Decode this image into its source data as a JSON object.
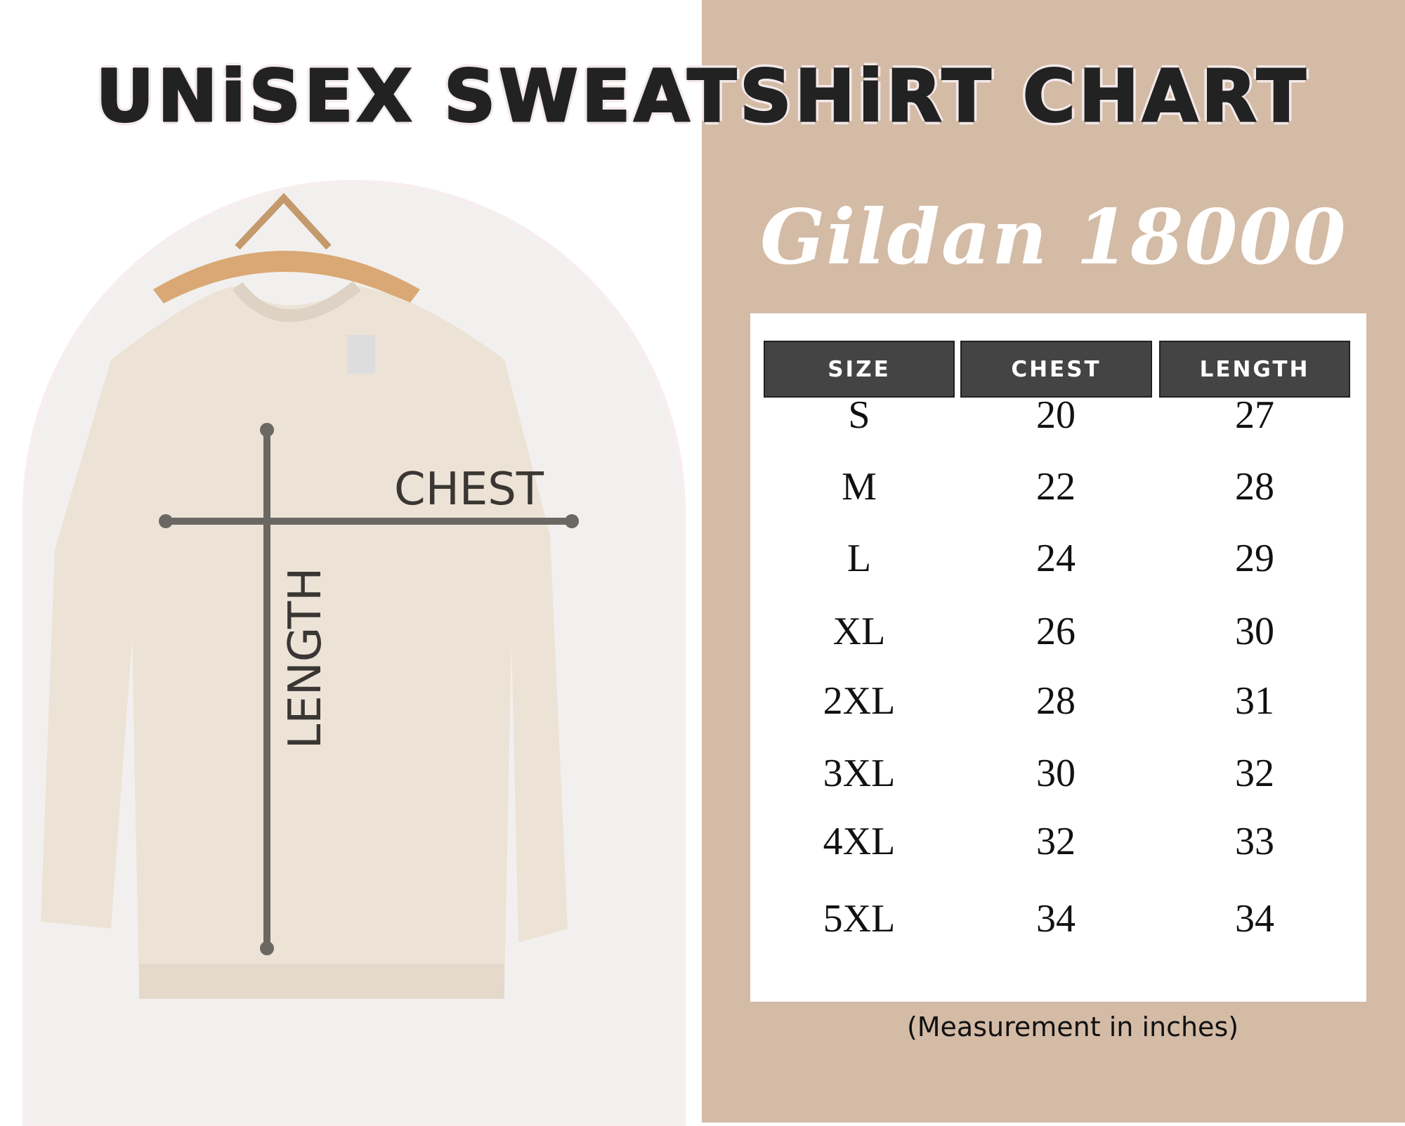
{
  "title": "UNiSEX SWEATSHiRT CHART",
  "subtitle": "Gildan 18000",
  "diagram": {
    "chest_label": "CHEST",
    "length_label": "LENGTH"
  },
  "table": {
    "headers": [
      "SIZE",
      "CHEST",
      "LENGTH"
    ],
    "rows": [
      [
        "S",
        "20",
        "27"
      ],
      [
        "M",
        "22",
        "28"
      ],
      [
        "L",
        "24",
        "29"
      ],
      [
        "XL",
        "26",
        "30"
      ],
      [
        "2XL",
        "28",
        "31"
      ],
      [
        "3XL",
        "30",
        "32"
      ],
      [
        "4XL",
        "32",
        "33"
      ],
      [
        "5XL",
        "34",
        "34"
      ]
    ]
  },
  "caption": "(Measurement in inches)",
  "colors": {
    "panel": "#d4bba6",
    "header": "#444444",
    "garment": "#ece3d6"
  }
}
